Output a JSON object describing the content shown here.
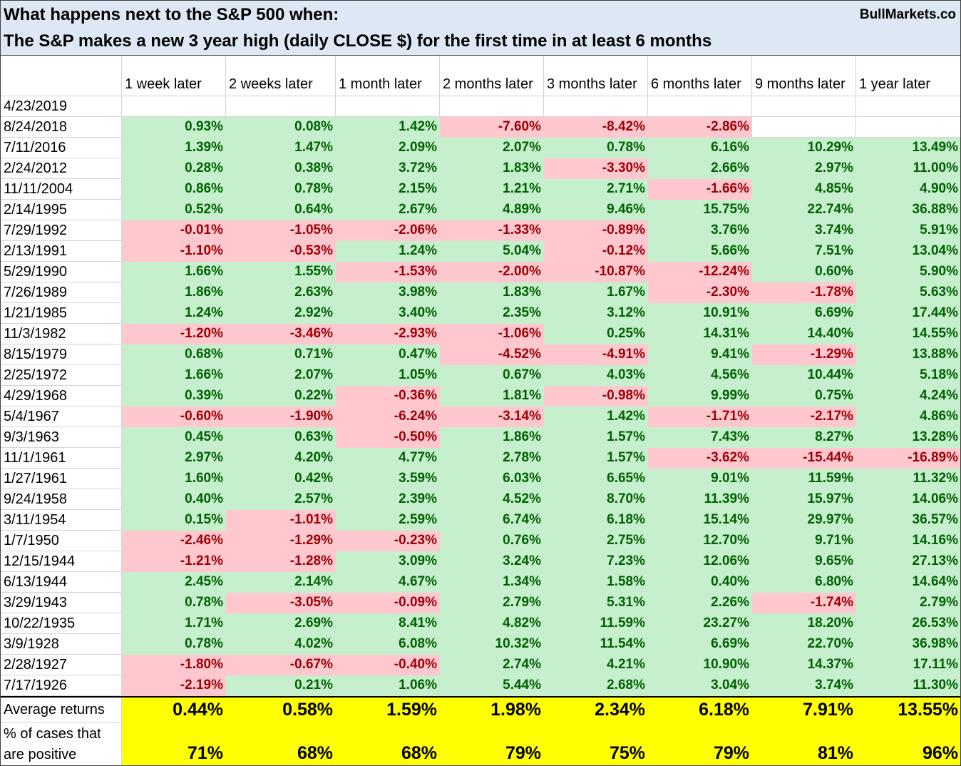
{
  "colors": {
    "title_band": "#dde8f4",
    "positive_fill": "#c6efce",
    "positive_text": "#006100",
    "negative_fill": "#ffc7ce",
    "negative_text": "#9c0006",
    "summary_fill": "#ffff00"
  },
  "chart_data": {
    "type": "table",
    "title": "What happens next to the S&P 500 when:",
    "subtitle": "The S&P makes a new 3 year high (daily CLOSE $) for the first time in at least 6 months",
    "brand": "BullMarkets.co",
    "columns": [
      "1 week later",
      "2 weeks later",
      "1 month later",
      "2 months later",
      "3 months later",
      "6 months later",
      "9 months later",
      "1 year later"
    ],
    "rows": [
      {
        "date": "4/23/2019",
        "values": [
          "",
          "",
          "",
          "",
          "",
          "",
          "",
          ""
        ]
      },
      {
        "date": "8/24/2018",
        "values": [
          "0.93%",
          "0.08%",
          "1.42%",
          "-7.60%",
          "-8.42%",
          "-2.86%",
          "",
          ""
        ]
      },
      {
        "date": "7/11/2016",
        "values": [
          "1.39%",
          "1.47%",
          "2.09%",
          "2.07%",
          "0.78%",
          "6.16%",
          "10.29%",
          "13.49%"
        ]
      },
      {
        "date": "2/24/2012",
        "values": [
          "0.28%",
          "0.38%",
          "3.72%",
          "1.83%",
          "-3.30%",
          "2.66%",
          "2.97%",
          "11.00%"
        ]
      },
      {
        "date": "11/11/2004",
        "values": [
          "0.86%",
          "0.78%",
          "2.15%",
          "1.21%",
          "2.71%",
          "-1.66%",
          "4.85%",
          "4.90%"
        ]
      },
      {
        "date": "2/14/1995",
        "values": [
          "0.52%",
          "0.64%",
          "2.67%",
          "4.89%",
          "9.46%",
          "15.75%",
          "22.74%",
          "36.88%"
        ]
      },
      {
        "date": "7/29/1992",
        "values": [
          "-0.01%",
          "-1.05%",
          "-2.06%",
          "-1.33%",
          "-0.89%",
          "3.76%",
          "3.74%",
          "5.91%"
        ]
      },
      {
        "date": "2/13/1991",
        "values": [
          "-1.10%",
          "-0.53%",
          "1.24%",
          "5.04%",
          "-0.12%",
          "5.66%",
          "7.51%",
          "13.04%"
        ]
      },
      {
        "date": "5/29/1990",
        "values": [
          "1.66%",
          "1.55%",
          "-1.53%",
          "-2.00%",
          "-10.87%",
          "-12.24%",
          "0.60%",
          "5.90%"
        ]
      },
      {
        "date": "7/26/1989",
        "values": [
          "1.86%",
          "2.63%",
          "3.98%",
          "1.83%",
          "1.67%",
          "-2.30%",
          "-1.78%",
          "5.63%"
        ]
      },
      {
        "date": "1/21/1985",
        "values": [
          "1.24%",
          "2.92%",
          "3.40%",
          "2.35%",
          "3.12%",
          "10.91%",
          "6.69%",
          "17.44%"
        ]
      },
      {
        "date": "11/3/1982",
        "values": [
          "-1.20%",
          "-3.46%",
          "-2.93%",
          "-1.06%",
          "0.25%",
          "14.31%",
          "14.40%",
          "14.55%"
        ]
      },
      {
        "date": "8/15/1979",
        "values": [
          "0.68%",
          "0.71%",
          "0.47%",
          "-4.52%",
          "-4.91%",
          "9.41%",
          "-1.29%",
          "13.88%"
        ]
      },
      {
        "date": "2/25/1972",
        "values": [
          "1.66%",
          "2.07%",
          "1.05%",
          "0.67%",
          "4.03%",
          "4.56%",
          "10.44%",
          "5.18%"
        ]
      },
      {
        "date": "4/29/1968",
        "values": [
          "0.39%",
          "0.22%",
          "-0.36%",
          "1.81%",
          "-0.98%",
          "9.99%",
          "0.75%",
          "4.24%"
        ]
      },
      {
        "date": "5/4/1967",
        "values": [
          "-0.60%",
          "-1.90%",
          "-6.24%",
          "-3.14%",
          "1.42%",
          "-1.71%",
          "-2.17%",
          "4.86%"
        ]
      },
      {
        "date": "9/3/1963",
        "values": [
          "0.45%",
          "0.63%",
          "-0.50%",
          "1.86%",
          "1.57%",
          "7.43%",
          "8.27%",
          "13.28%"
        ]
      },
      {
        "date": "11/1/1961",
        "values": [
          "2.97%",
          "4.20%",
          "4.77%",
          "2.78%",
          "1.57%",
          "-3.62%",
          "-15.44%",
          "-16.89%"
        ]
      },
      {
        "date": "1/27/1961",
        "values": [
          "1.60%",
          "0.42%",
          "3.59%",
          "6.03%",
          "6.65%",
          "9.01%",
          "11.59%",
          "11.32%"
        ]
      },
      {
        "date": "9/24/1958",
        "values": [
          "0.40%",
          "2.57%",
          "2.39%",
          "4.52%",
          "8.70%",
          "11.39%",
          "15.97%",
          "14.06%"
        ]
      },
      {
        "date": "3/11/1954",
        "values": [
          "0.15%",
          "-1.01%",
          "2.59%",
          "6.74%",
          "6.18%",
          "15.14%",
          "29.97%",
          "36.57%"
        ]
      },
      {
        "date": "1/7/1950",
        "values": [
          "-2.46%",
          "-1.29%",
          "-0.23%",
          "0.76%",
          "2.75%",
          "12.70%",
          "9.71%",
          "14.16%"
        ]
      },
      {
        "date": "12/15/1944",
        "values": [
          "-1.21%",
          "-1.28%",
          "3.09%",
          "3.24%",
          "7.23%",
          "12.06%",
          "9.65%",
          "27.13%"
        ]
      },
      {
        "date": "6/13/1944",
        "values": [
          "2.45%",
          "2.14%",
          "4.67%",
          "1.34%",
          "1.58%",
          "0.40%",
          "6.80%",
          "14.64%"
        ]
      },
      {
        "date": "3/29/1943",
        "values": [
          "0.78%",
          "-3.05%",
          "-0.09%",
          "2.79%",
          "5.31%",
          "2.26%",
          "-1.74%",
          "2.79%"
        ]
      },
      {
        "date": "10/22/1935",
        "values": [
          "1.71%",
          "2.69%",
          "8.41%",
          "4.82%",
          "11.59%",
          "23.27%",
          "18.20%",
          "26.53%"
        ]
      },
      {
        "date": "3/9/1928",
        "values": [
          "0.78%",
          "4.02%",
          "6.08%",
          "10.32%",
          "11.54%",
          "6.69%",
          "22.70%",
          "36.98%"
        ]
      },
      {
        "date": "2/28/1927",
        "values": [
          "-1.80%",
          "-0.67%",
          "-0.40%",
          "2.74%",
          "4.21%",
          "10.90%",
          "14.37%",
          "17.11%"
        ]
      },
      {
        "date": "7/17/1926",
        "values": [
          "-2.19%",
          "0.21%",
          "1.06%",
          "5.44%",
          "2.68%",
          "3.04%",
          "3.74%",
          "11.30%"
        ]
      }
    ],
    "summary": [
      {
        "label_lines": [
          "Average returns"
        ],
        "values": [
          "0.44%",
          "0.58%",
          "1.59%",
          "1.98%",
          "2.34%",
          "6.18%",
          "7.91%",
          "13.55%"
        ]
      },
      {
        "label_lines": [
          "% of cases that",
          "are positive"
        ],
        "values": [
          "71%",
          "68%",
          "68%",
          "79%",
          "75%",
          "79%",
          "81%",
          "96%"
        ]
      }
    ]
  }
}
